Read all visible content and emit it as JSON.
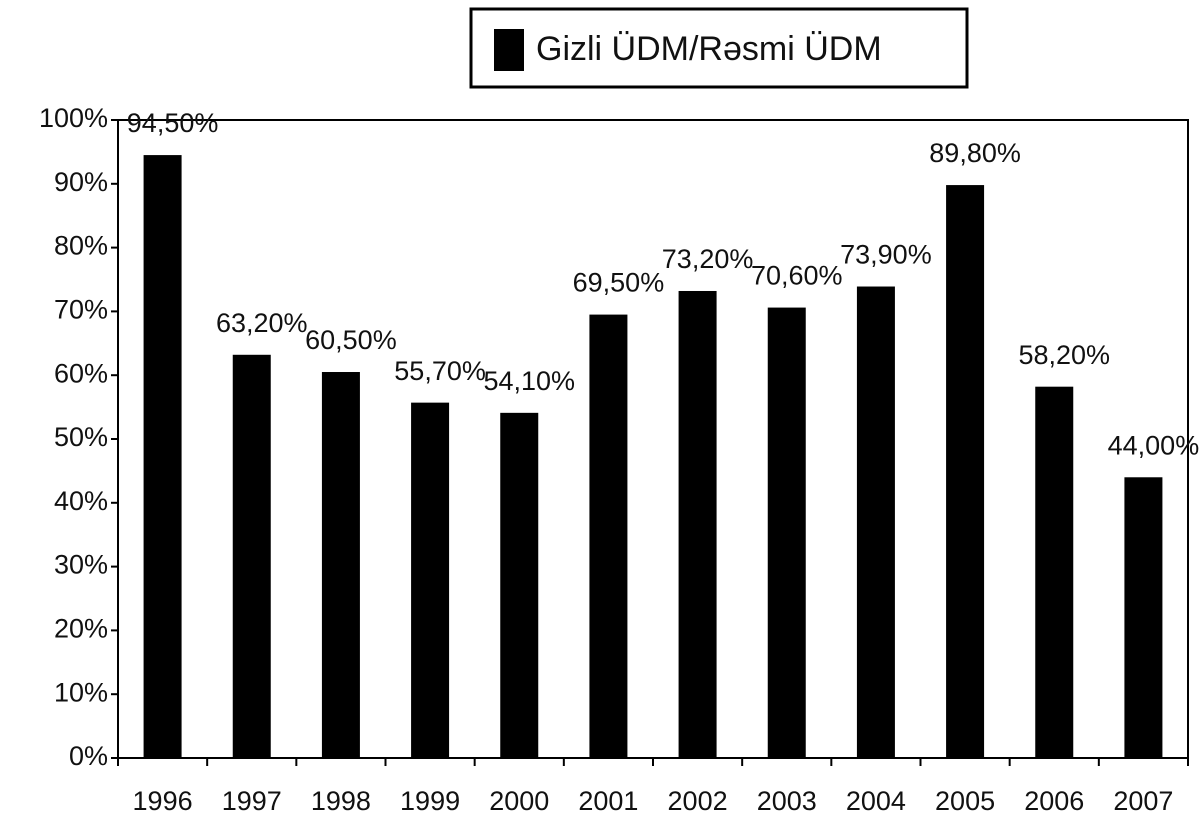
{
  "chart_data": {
    "type": "bar",
    "categories": [
      "1996",
      "1997",
      "1998",
      "1999",
      "2000",
      "2001",
      "2002",
      "2003",
      "2004",
      "2005",
      "2006",
      "2007"
    ],
    "series": [
      {
        "name": "Gizli ÜDM/Rəsmi ÜDM",
        "color": "#000000",
        "values": [
          94.5,
          63.2,
          60.5,
          55.7,
          54.1,
          69.5,
          73.2,
          70.6,
          73.9,
          89.8,
          58.2,
          44.0
        ],
        "value_labels": [
          "94,50%",
          "63,20%",
          "60,50%",
          "55,70%",
          "54,10%",
          "69,50%",
          "73,20%",
          "70,60%",
          "73,90%",
          "89,80%",
          "58,20%",
          "44,00%"
        ]
      }
    ],
    "ylim": [
      0,
      100
    ],
    "yticks": [
      {
        "value": 0,
        "label": "0%"
      },
      {
        "value": 10,
        "label": "10%"
      },
      {
        "value": 20,
        "label": "20%"
      },
      {
        "value": 30,
        "label": "30%"
      },
      {
        "value": 40,
        "label": "40%"
      },
      {
        "value": 50,
        "label": "50%"
      },
      {
        "value": 60,
        "label": "60%"
      },
      {
        "value": 70,
        "label": "70%"
      },
      {
        "value": 80,
        "label": "80%"
      },
      {
        "value": 90,
        "label": "90%"
      },
      {
        "value": 100,
        "label": "100%"
      }
    ],
    "legend": "top",
    "grid": false
  }
}
